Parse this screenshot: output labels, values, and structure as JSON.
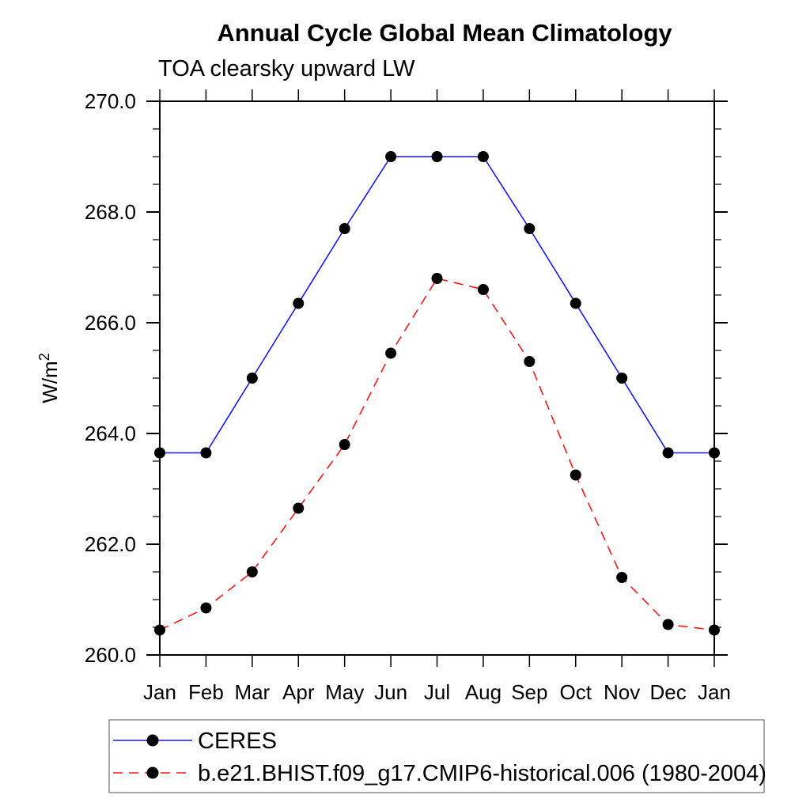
{
  "title": "Annual Cycle Global Mean Climatology",
  "subtitle": "TOA clearsky upward LW",
  "chart_data": {
    "type": "line",
    "title": "Annual Cycle Global Mean Climatology",
    "subtitle": "TOA clearsky upward LW",
    "ylabel": {
      "base": "W/m",
      "sup": "2"
    },
    "categories": [
      "Jan",
      "Feb",
      "Mar",
      "Apr",
      "May",
      "Jun",
      "Jul",
      "Aug",
      "Sep",
      "Oct",
      "Nov",
      "Dec",
      "Jan"
    ],
    "ylim": [
      260.0,
      270.0
    ],
    "ytick_values": [
      260,
      262,
      264,
      266,
      268,
      270
    ],
    "ytick_labels": [
      "260.0",
      "262.0",
      "264.0",
      "266.0",
      "268.0",
      "270.0"
    ],
    "ytick_minor_step": 0.5,
    "grid": false,
    "legend_position": "bottom-left",
    "series": [
      {
        "name": "CERES",
        "line_style": "solid",
        "line_color": "#1414ff",
        "marker": "filled-circle",
        "marker_color": "#000000",
        "values": [
          263.65,
          263.65,
          265.0,
          266.35,
          267.7,
          269.0,
          269.0,
          269.0,
          267.7,
          266.35,
          265.0,
          263.65,
          263.65
        ]
      },
      {
        "name": "b.e21.BHIST.f09_g17.CMIP6-historical.006 (1980-2004)",
        "line_style": "dashed",
        "line_color": "#ff1414",
        "marker": "filled-circle",
        "marker_color": "#000000",
        "values": [
          260.45,
          260.85,
          261.5,
          262.65,
          263.8,
          265.45,
          266.8,
          266.6,
          265.3,
          263.25,
          261.4,
          260.55,
          260.45
        ]
      }
    ],
    "axis_color": "#000000",
    "legend_border_color": "#8c8c8c",
    "text_color": "#000000"
  }
}
